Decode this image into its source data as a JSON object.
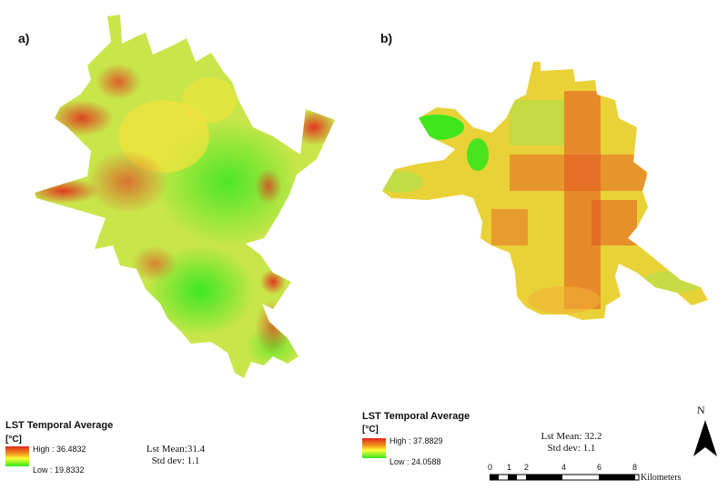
{
  "panel_a": {
    "label": "a)",
    "legend": {
      "title": "LST Temporal Average",
      "unit": "[°C]",
      "high": "High : 36.4832",
      "low": "Low : 19.8332"
    },
    "stats": {
      "mean": "Lst Mean:31.4",
      "std": "Std dev: 1.1"
    }
  },
  "panel_b": {
    "label": "b)",
    "legend": {
      "title": "LST Temporal Average",
      "unit": "[°C]",
      "high": "High : 37.8829",
      "low": "Low : 24.0588"
    },
    "stats": {
      "mean": "Lst Mean: 32.2",
      "std": "Std dev: 1.1"
    }
  },
  "north_arrow": {
    "label": "N"
  },
  "scale_bar": {
    "ticks": [
      "0",
      "1",
      "2",
      "4",
      "6",
      "8"
    ],
    "unit": "Kilometers"
  },
  "colors": {
    "high": "#e3261b",
    "mid": "#ffff38",
    "low": "#2ee81a"
  }
}
